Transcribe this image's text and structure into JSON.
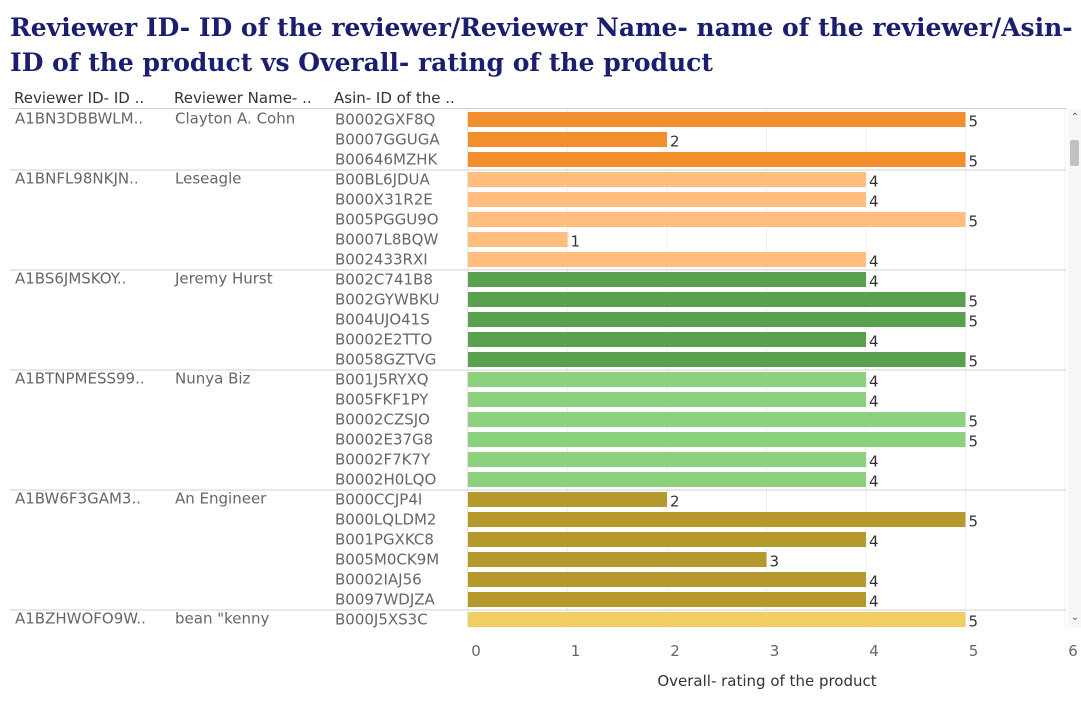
{
  "chart_data": {
    "type": "bar",
    "title": "Reviewer ID- ID of the reviewer/Reviewer Name- name of the reviewer/Asin- ID of the product vs Overall- rating of the product",
    "column_headers": [
      "Reviewer ID- ID ..",
      "Reviewer Name- ..",
      "Asin- ID of the .."
    ],
    "xlabel": "Overall- rating of the product",
    "xlim": [
      0,
      6
    ],
    "x_ticks": [
      "0",
      "1",
      "2",
      "3",
      "4",
      "5",
      "6"
    ],
    "grid": true,
    "groups": [
      {
        "reviewer_id": "A1BN3DBBWLM..",
        "reviewer_name": "Clayton A. Cohn",
        "color": "#f28e2b",
        "bars": [
          {
            "asin": "B0002GXF8Q",
            "value": 5
          },
          {
            "asin": "B0007GGUGA",
            "value": 2
          },
          {
            "asin": "B00646MZHK",
            "value": 5
          }
        ]
      },
      {
        "reviewer_id": "A1BNFL98NKJN..",
        "reviewer_name": "Leseagle",
        "color": "#ffbe7d",
        "bars": [
          {
            "asin": "B00BL6JDUA",
            "value": 4
          },
          {
            "asin": "B000X31R2E",
            "value": 4
          },
          {
            "asin": "B005PGGU9O",
            "value": 5
          },
          {
            "asin": "B0007L8BQW",
            "value": 1
          },
          {
            "asin": "B002433RXI",
            "value": 4
          }
        ]
      },
      {
        "reviewer_id": "A1BS6JMSKOY..",
        "reviewer_name": "Jeremy Hurst",
        "color": "#59a14f",
        "bars": [
          {
            "asin": "B002C741B8",
            "value": 4
          },
          {
            "asin": "B002GYWBKU",
            "value": 5
          },
          {
            "asin": "B004UJO41S",
            "value": 5
          },
          {
            "asin": "B0002E2TTO",
            "value": 4
          },
          {
            "asin": "B0058GZTVG",
            "value": 5
          }
        ]
      },
      {
        "reviewer_id": "A1BTNPMESS99..",
        "reviewer_name": "Nunya Biz",
        "color": "#8cd17d",
        "bars": [
          {
            "asin": "B001J5RYXQ",
            "value": 4
          },
          {
            "asin": "B005FKF1PY",
            "value": 4
          },
          {
            "asin": "B0002CZSJO",
            "value": 5
          },
          {
            "asin": "B0002E37G8",
            "value": 5
          },
          {
            "asin": "B0002F7K7Y",
            "value": 4
          },
          {
            "asin": "B0002H0LQO",
            "value": 4
          }
        ]
      },
      {
        "reviewer_id": "A1BW6F3GAM3..",
        "reviewer_name": "An Engineer",
        "color": "#b6992d",
        "bars": [
          {
            "asin": "B000CCJP4I",
            "value": 2
          },
          {
            "asin": "B000LQLDM2",
            "value": 5
          },
          {
            "asin": "B001PGXKC8",
            "value": 4
          },
          {
            "asin": "B005M0CK9M",
            "value": 3
          },
          {
            "asin": "B0002IAJ56",
            "value": 4
          },
          {
            "asin": "B0097WDJZA",
            "value": 4
          }
        ]
      },
      {
        "reviewer_id": "A1BZHWOFO9W..",
        "reviewer_name": "bean \"kenny",
        "color": "#f1ce63",
        "bars": [
          {
            "asin": "B000J5XS3C",
            "value": 5
          }
        ]
      }
    ]
  }
}
